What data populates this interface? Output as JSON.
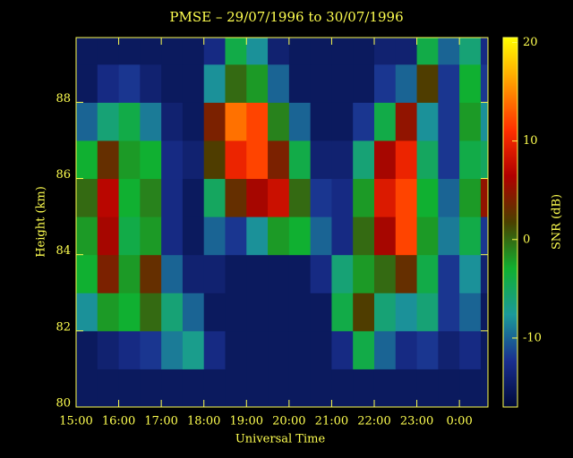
{
  "chart_data": {
    "type": "heatmap",
    "title": "PMSE – 29/07/1996 to 30/07/1996",
    "xlabel": "Universal Time",
    "ylabel": "Height (km)",
    "colorbar_label": "SNR (dB)",
    "xlim": [
      15,
      24.67
    ],
    "ylim": [
      80,
      89.7
    ],
    "zlim": [
      -17,
      20.5
    ],
    "xticks": [
      {
        "value": 15,
        "label": "15:00"
      },
      {
        "value": 16,
        "label": "16:00"
      },
      {
        "value": 17,
        "label": "17:00"
      },
      {
        "value": 18,
        "label": "18:00"
      },
      {
        "value": 19,
        "label": "19:00"
      },
      {
        "value": 20,
        "label": "20:00"
      },
      {
        "value": 21,
        "label": "21:00"
      },
      {
        "value": 22,
        "label": "22:00"
      },
      {
        "value": 23,
        "label": "23:00"
      },
      {
        "value": 24,
        "label": "0:00"
      }
    ],
    "yticks": [
      80,
      82,
      84,
      86,
      88
    ],
    "zticks": [
      -10,
      0,
      10,
      20
    ],
    "colormap": [
      "#000a3a",
      "#1a2f8f",
      "#1b9a9a",
      "#10b030",
      "#4a4000",
      "#b00000",
      "#ff3000",
      "#ff9a00",
      "#ffff00"
    ],
    "x": [
      15.25,
      15.75,
      16.25,
      16.75,
      17.25,
      17.75,
      18.25,
      18.75,
      19.25,
      19.75,
      20.25,
      20.75,
      21.25,
      21.75,
      22.25,
      22.75,
      23.25,
      23.75,
      24.25,
      24.75
    ],
    "y": [
      80.5,
      81.5,
      82.5,
      83.5,
      84.5,
      85.5,
      86.5,
      87.5,
      88.5,
      89.5
    ],
    "z": [
      [
        -15,
        -15,
        -15,
        -15,
        -15,
        -15,
        -15,
        -15,
        -15,
        -15,
        -15,
        -15,
        -15,
        -15,
        -15,
        -15,
        -15,
        -15,
        -15,
        -15
      ],
      [
        -15,
        -14,
        -13,
        -12,
        -9,
        -7,
        -13,
        -15,
        -15,
        -15,
        -15,
        -15,
        -13,
        -4,
        -10,
        -13,
        -12,
        -14,
        -13,
        -15
      ],
      [
        -8,
        -2,
        -3,
        0,
        -6,
        -10,
        -15,
        -15,
        -15,
        -15,
        -15,
        -15,
        -4,
        2,
        -6,
        -8,
        -6,
        -12,
        -10,
        -15
      ],
      [
        -3,
        4,
        -2,
        3,
        -10,
        -14,
        -14,
        -15,
        -15,
        -15,
        -15,
        -13,
        -6,
        -2,
        0,
        3,
        -4,
        -12,
        -8,
        -14
      ],
      [
        -2,
        6,
        -4,
        -2,
        -13,
        -15,
        -10,
        -12,
        -8,
        -2,
        -3,
        -10,
        -13,
        0,
        6,
        12,
        -2,
        -9,
        -4,
        -12
      ],
      [
        0,
        7,
        -3,
        -1,
        -13,
        -15,
        -5,
        3,
        6,
        8,
        0,
        -12,
        -13,
        -2,
        9,
        12,
        -3,
        -10,
        -2,
        5
      ],
      [
        -3,
        3,
        -2,
        -3,
        -13,
        -14,
        2,
        10,
        12,
        4,
        -4,
        -14,
        -14,
        -6,
        6,
        10,
        -5,
        -12,
        -4,
        -5
      ],
      [
        -10,
        -6,
        -4,
        -9,
        -14,
        -15,
        4,
        14,
        12,
        -1,
        -10,
        -15,
        -15,
        -12,
        -4,
        5,
        -8,
        -12,
        -2,
        -8
      ],
      [
        -15,
        -13,
        -12,
        -14,
        -15,
        -15,
        -8,
        0,
        -2,
        -10,
        -15,
        -15,
        -15,
        -15,
        -12,
        -10,
        2,
        -12,
        -3,
        -12
      ],
      [
        -15,
        -15,
        -15,
        -15,
        -15,
        -15,
        -13,
        -4,
        -8,
        -14,
        -15,
        -15,
        -15,
        -15,
        -14,
        -14,
        -4,
        -10,
        -6,
        -13
      ]
    ]
  }
}
